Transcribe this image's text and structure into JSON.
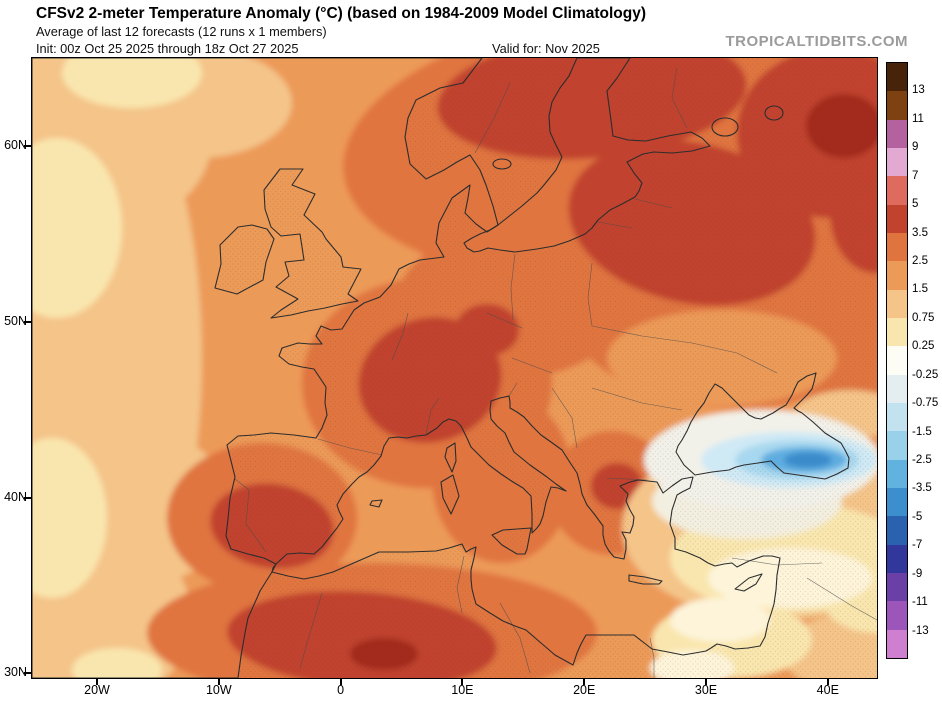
{
  "header": {
    "title": "CFSv2 2-meter Temperature Anomaly (°C) (based on 1984-2009 Model Climatology)",
    "subtitle": "Average of last 12 forecasts (12 runs x 1 members)",
    "init_label": "Init: 00z Oct 25 2025 through 18z Oct 27 2025",
    "valid_label": "Valid for: Nov 2025",
    "watermark": "TROPICALTIDBITS.COM"
  },
  "chart_data": {
    "type": "heatmap",
    "title": "CFSv2 2-meter Temperature Anomaly (°C) (based on 1984-2009 Model Climatology)",
    "subtitle": "Average of last 12 forecasts (12 runs x 1 members)",
    "init": "Init: 00z Oct 25 2025 through 18z Oct 27 2025",
    "valid": "Valid for: Nov 2025",
    "region": "Europe / North Africa / Middle East",
    "projection_extent": {
      "lon": [
        "~25W",
        "~44E"
      ],
      "lat": [
        "30N",
        "~65N"
      ]
    },
    "x_ticks": [
      "20W",
      "10W",
      "0",
      "10E",
      "20E",
      "30E",
      "40E"
    ],
    "y_ticks": [
      "60N",
      "50N",
      "40N",
      "30N"
    ],
    "grid": false,
    "colorbar": {
      "units": "°C",
      "position": "right",
      "tick_labels": [
        "13",
        "11",
        "9",
        "7",
        "5",
        "3.5",
        "2.5",
        "1.5",
        "0.75",
        "0.25",
        "-0.25",
        "-0.75",
        "-1.5",
        "-2.5",
        "-3.5",
        "-5",
        "-7",
        "-9",
        "-11",
        "-13"
      ],
      "segment_colors": [
        "#47230a",
        "#7d4112",
        "#b4629f",
        "#e2a9d3",
        "#df6a5e",
        "#c1432e",
        "#e0743f",
        "#ec9a58",
        "#f4c489",
        "#f9e6ae",
        "#fdfdf6",
        "#e4eef0",
        "#c3e2ef",
        "#99d1ea",
        "#62b2e0",
        "#3c8ecd",
        "#2b62b0",
        "#32389b",
        "#6a3fa6",
        "#9c55b8",
        "#cf7fd0"
      ]
    },
    "features": [
      {
        "region": "Most of Europe (France, Germany, UK, central Mediterranean)",
        "anomaly_c": "+1.5 to +3.5"
      },
      {
        "region": "Scandinavia, Finland, Baltics, NW Russia",
        "anomaly_c": "+2.5 to +5"
      },
      {
        "region": "Alps / eastern France / Switzerland",
        "anomaly_c": "+3.5 to +5"
      },
      {
        "region": "Interior and southern Iberia",
        "anomaly_c": "+2.5 to +5"
      },
      {
        "region": "NW Africa (Morocco, Algeria, Tunisia)",
        "anomaly_c": "+2.5 to +5"
      },
      {
        "region": "Ukraine / north of Black Sea",
        "anomaly_c": "+1.5 to +2.5"
      },
      {
        "region": "Eastern Turkey, Caucasus, eastern Black Sea",
        "anomaly_c": "-0.75 to -3.5 (coldest core near Georgia/Armenia)"
      },
      {
        "region": "Central and southern Turkey, northern Middle East",
        "anomaly_c": "-0.25 to +0.75"
      },
      {
        "region": "Far eastern Atlantic along west edge of map",
        "anomaly_c": "+0.25 to +1.5"
      },
      {
        "region": "Egypt / Levant coast",
        "anomaly_c": "0 to +0.75"
      }
    ]
  }
}
